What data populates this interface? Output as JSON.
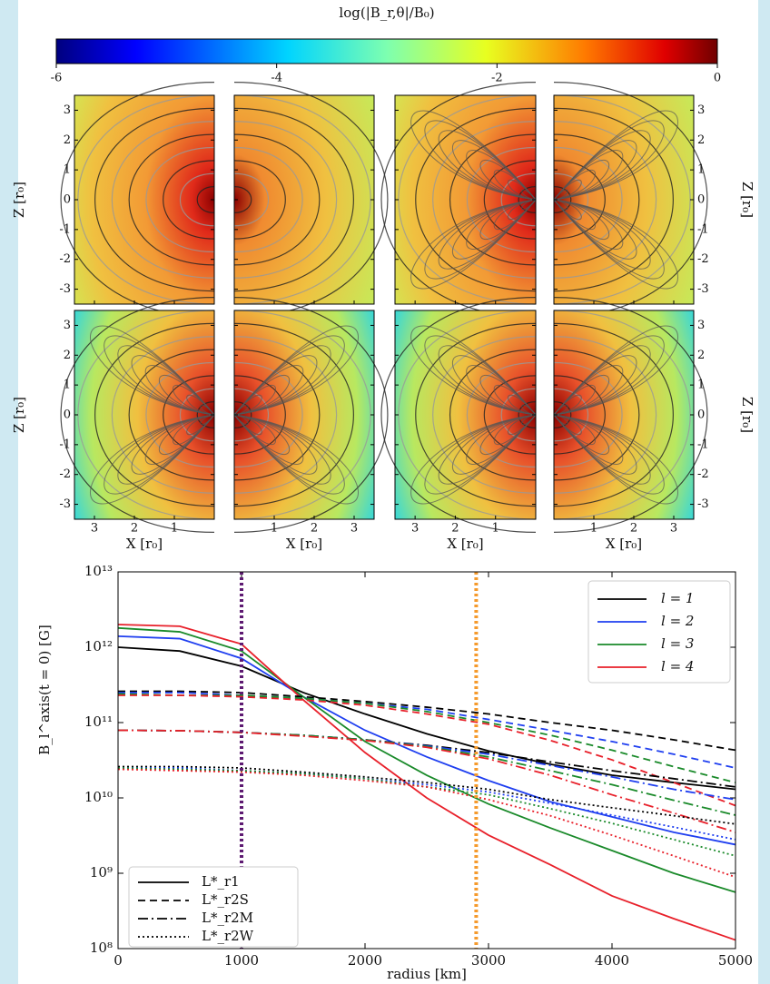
{
  "chart_data": [
    {
      "type": "colorbar",
      "label": "log(|B_r,θ|/B₀)",
      "lim": [
        -6,
        0
      ],
      "ticks": [
        -6,
        -4,
        -2,
        0
      ]
    },
    {
      "type": "field-panels",
      "xlabel": "X [r₀]",
      "zlabel": "Z [r₀]",
      "xlim": [
        0,
        3.5
      ],
      "zlim": [
        -3.5,
        3.5
      ],
      "xticks": [
        1,
        2,
        3
      ],
      "zticks": [
        -3,
        -2,
        -1,
        0,
        1,
        2,
        3
      ]
    },
    {
      "type": "line",
      "xlabel": "radius [km]",
      "ylabel": "B_l^axis(t = 0) [G]",
      "log_y": true,
      "x": [
        0,
        500,
        1000,
        1500,
        2000,
        2500,
        3000,
        3500,
        4000,
        4500,
        5000
      ],
      "xlim": [
        0,
        5000
      ],
      "xticks": [
        0,
        1000,
        2000,
        3000,
        4000,
        5000
      ],
      "ylim": [
        100000000.0,
        10000000000000.0
      ],
      "yticks": [
        {
          "value": 100000000.0,
          "label": "10⁸"
        },
        {
          "value": 1000000000.0,
          "label": "10⁹"
        },
        {
          "value": 10000000000.0,
          "label": "10¹⁰"
        },
        {
          "value": 100000000000.0,
          "label": "10¹¹"
        },
        {
          "value": 1000000000000.0,
          "label": "10¹²"
        },
        {
          "value": 10000000000000.0,
          "label": "10¹³"
        }
      ],
      "vlines": [
        {
          "x": 1000,
          "color": "#5e1a72"
        },
        {
          "x": 2900,
          "color": "#f59a2c"
        }
      ],
      "color_legend": [
        {
          "label": "l = 1",
          "color": "#000000"
        },
        {
          "label": "l = 2",
          "color": "#1f3ff0"
        },
        {
          "label": "l = 3",
          "color": "#1a8a2a"
        },
        {
          "label": "l = 4",
          "color": "#e8202a"
        }
      ],
      "style_legend": [
        {
          "label": "L*_r1",
          "dash": "solid"
        },
        {
          "label": "L*_r2S",
          "dash": "dashed"
        },
        {
          "label": "L*_r2M",
          "dash": "dashdot"
        },
        {
          "label": "L*_r2W",
          "dash": "dotted"
        }
      ],
      "series": [
        {
          "color": "#000000",
          "dash": "solid",
          "values": [
            1000000000000.0,
            890000000000.0,
            560000000000.0,
            250000000000.0,
            130000000000.0,
            71000000000.0,
            42000000000.0,
            28000000000.0,
            20000000000.0,
            16000000000.0,
            13000000000.0
          ]
        },
        {
          "color": "#1f3ff0",
          "dash": "solid",
          "values": [
            1400000000000.0,
            1300000000000.0,
            710000000000.0,
            220000000000.0,
            79000000000.0,
            35000000000.0,
            17000000000.0,
            8900000000.0,
            5600000000.0,
            3500000000.0,
            2400000000.0
          ]
        },
        {
          "color": "#1a8a2a",
          "dash": "solid",
          "values": [
            1800000000000.0,
            1600000000000.0,
            890000000000.0,
            220000000000.0,
            56000000000.0,
            20000000000.0,
            8300000000.0,
            4000000000.0,
            2000000000.0,
            1000000000.0,
            560000000.0
          ]
        },
        {
          "color": "#e8202a",
          "dash": "solid",
          "values": [
            2000000000000.0,
            1900000000000.0,
            1100000000000.0,
            200000000000.0,
            40000000000.0,
            10000000000.0,
            3200000000.0,
            1300000000.0,
            500000000.0,
            250000000.0,
            130000000.0
          ]
        },
        {
          "color": "#000000",
          "dash": "dashed",
          "values": [
            260000000000.0,
            260000000000.0,
            250000000000.0,
            220000000000.0,
            190000000000.0,
            160000000000.0,
            130000000000.0,
            100000000000.0,
            79000000000.0,
            59000000000.0,
            43000000000.0
          ]
        },
        {
          "color": "#1f3ff0",
          "dash": "dashed",
          "values": [
            250000000000.0,
            250000000000.0,
            230000000000.0,
            210000000000.0,
            180000000000.0,
            150000000000.0,
            110000000000.0,
            79000000000.0,
            56000000000.0,
            38000000000.0,
            25000000000.0
          ]
        },
        {
          "color": "#1a8a2a",
          "dash": "dashed",
          "values": [
            240000000000.0,
            230000000000.0,
            230000000000.0,
            210000000000.0,
            180000000000.0,
            140000000000.0,
            100000000000.0,
            68000000000.0,
            43000000000.0,
            26000000000.0,
            16000000000.0
          ]
        },
        {
          "color": "#e8202a",
          "dash": "dashed",
          "values": [
            230000000000.0,
            230000000000.0,
            220000000000.0,
            200000000000.0,
            170000000000.0,
            130000000000.0,
            95000000000.0,
            58000000000.0,
            32000000000.0,
            16000000000.0,
            7900000000.0
          ]
        },
        {
          "color": "#000000",
          "dash": "dashdot",
          "values": [
            79000000000.0,
            78000000000.0,
            74000000000.0,
            68000000000.0,
            59000000000.0,
            50000000000.0,
            40000000000.0,
            30000000000.0,
            23000000000.0,
            18000000000.0,
            14000000000.0
          ]
        },
        {
          "color": "#1f3ff0",
          "dash": "dashdot",
          "values": [
            79000000000.0,
            78000000000.0,
            74000000000.0,
            68000000000.0,
            59000000000.0,
            49000000000.0,
            38000000000.0,
            27000000000.0,
            19000000000.0,
            13000000000.0,
            9500000000.0
          ]
        },
        {
          "color": "#1a8a2a",
          "dash": "dashdot",
          "values": [
            79000000000.0,
            78000000000.0,
            74000000000.0,
            68000000000.0,
            59000000000.0,
            48000000000.0,
            35000000000.0,
            23000000000.0,
            15000000000.0,
            9300000000.0,
            5900000000.0
          ]
        },
        {
          "color": "#e8202a",
          "dash": "dashdot",
          "values": [
            79000000000.0,
            78000000000.0,
            74000000000.0,
            66000000000.0,
            58000000000.0,
            47000000000.0,
            33000000000.0,
            20000000000.0,
            11000000000.0,
            6300000000.0,
            3500000000.0
          ]
        },
        {
          "color": "#000000",
          "dash": "dotted",
          "values": [
            26000000000.0,
            26000000000.0,
            25000000000.0,
            22000000000.0,
            19000000000.0,
            16000000000.0,
            13000000000.0,
            9500000000.0,
            7400000000.0,
            5800000000.0,
            4500000000.0
          ]
        },
        {
          "color": "#1f3ff0",
          "dash": "dotted",
          "values": [
            25000000000.0,
            25000000000.0,
            23000000000.0,
            21000000000.0,
            18000000000.0,
            15000000000.0,
            12000000000.0,
            8500000000.0,
            5900000000.0,
            4100000000.0,
            2800000000.0
          ]
        },
        {
          "color": "#1a8a2a",
          "dash": "dotted",
          "values": [
            25000000000.0,
            24000000000.0,
            23000000000.0,
            21000000000.0,
            18000000000.0,
            14000000000.0,
            11000000000.0,
            7200000000.0,
            4600000000.0,
            2800000000.0,
            1700000000.0
          ]
        },
        {
          "color": "#e8202a",
          "dash": "dotted",
          "values": [
            24000000000.0,
            23000000000.0,
            22000000000.0,
            20000000000.0,
            17000000000.0,
            14000000000.0,
            9500000000.0,
            5800000000.0,
            3200000000.0,
            1700000000.0,
            890000000.0
          ]
        }
      ]
    }
  ]
}
